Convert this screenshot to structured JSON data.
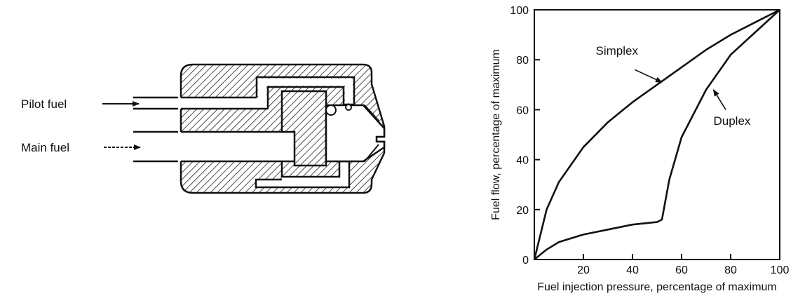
{
  "nozzle": {
    "labels": {
      "pilot": "Pilot fuel",
      "main": "Main fuel"
    }
  },
  "chart_data": {
    "type": "line",
    "xlabel": "Fuel injection pressure, percentage of maximum",
    "ylabel": "Fuel flow, percentage of maximum",
    "xlim": [
      0,
      100
    ],
    "ylim": [
      0,
      100
    ],
    "x_ticks": [
      20,
      40,
      60,
      80,
      100
    ],
    "y_ticks": [
      0,
      20,
      40,
      60,
      80,
      100
    ],
    "grid": false,
    "series": [
      {
        "name": "Simplex",
        "x": [
          0,
          5,
          10,
          20,
          30,
          40,
          50,
          60,
          70,
          80,
          90,
          100
        ],
        "y": [
          0,
          20,
          31,
          45,
          55,
          63,
          70,
          77,
          84,
          90,
          95,
          100
        ]
      },
      {
        "name": "Duplex",
        "x": [
          0,
          5,
          10,
          20,
          30,
          40,
          50,
          52,
          55,
          60,
          70,
          80,
          90,
          100
        ],
        "y": [
          0,
          4,
          7,
          10,
          12,
          14,
          15,
          16,
          32,
          49,
          68,
          82,
          91,
          100
        ]
      }
    ],
    "annotations": [
      {
        "text": "Simplex",
        "series": "Simplex"
      },
      {
        "text": "Duplex",
        "series": "Duplex"
      }
    ]
  }
}
